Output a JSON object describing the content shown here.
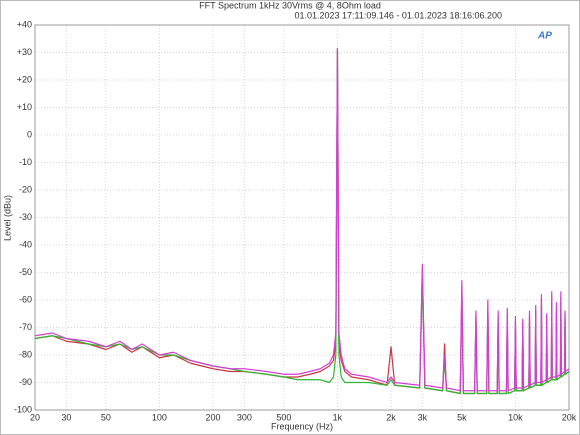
{
  "chart_data": {
    "type": "line",
    "title": "FFT Spectrum  1kHz 30Vrms @ 4, 8Ohm load",
    "subtitle": "01.01.2023 17:11:09.146 - 01.01.2023 18:16:06.200",
    "logo": "AP",
    "x_label": "Frequency (Hz)",
    "y_label": "Level (dBu)",
    "xscale": "log",
    "grid": true,
    "xlim": [
      20,
      20000
    ],
    "ylim": [
      -100,
      40
    ],
    "xticks": [
      20,
      30,
      50,
      100,
      200,
      300,
      500,
      {
        "value": 1000,
        "label": "1k"
      },
      {
        "value": 2000,
        "label": "2k"
      },
      {
        "value": 3000,
        "label": "3k"
      },
      {
        "value": 5000,
        "label": "5k"
      },
      {
        "value": 10000,
        "label": "10k"
      },
      {
        "value": 20000,
        "label": "20k"
      }
    ],
    "yticks": [
      {
        "value": 40,
        "label": "+40"
      },
      {
        "value": 30,
        "label": "+30"
      },
      {
        "value": 20,
        "label": "+20"
      },
      {
        "value": 10,
        "label": "+10"
      },
      0,
      -10,
      -20,
      -30,
      -40,
      -50,
      -60,
      -70,
      -80,
      -90,
      -100
    ],
    "x": [
      20,
      25,
      30,
      40,
      50,
      60,
      70,
      80,
      100,
      120,
      150,
      200,
      250,
      300,
      400,
      500,
      600,
      700,
      800,
      900,
      950,
      980,
      1000,
      1020,
      1050,
      1100,
      1200,
      1500,
      1900,
      2000,
      2100,
      2900,
      3000,
      3100,
      3900,
      4000,
      4100,
      4900,
      5000,
      5100,
      5900,
      6000,
      6100,
      6900,
      7000,
      7100,
      7900,
      8000,
      8100,
      8900,
      9000,
      9100,
      9900,
      10000,
      10100,
      10900,
      11000,
      11100,
      11900,
      12000,
      12100,
      12900,
      13000,
      13100,
      13900,
      14000,
      14100,
      14900,
      15000,
      15100,
      15900,
      16000,
      16100,
      16900,
      17000,
      17100,
      17900,
      18000,
      18100,
      18900,
      19000,
      19100,
      20000
    ],
    "series": [
      {
        "color": "#cc3344",
        "values": [
          -74,
          -73,
          -75,
          -76,
          -78,
          -76,
          -79,
          -77,
          -81,
          -80,
          -83,
          -85,
          -86,
          -86,
          -87,
          -88,
          -88,
          -87,
          -86,
          -84,
          -82,
          -76,
          31,
          -76,
          -82,
          -86,
          -88,
          -89,
          -91,
          -77,
          -91,
          -92,
          -49,
          -92,
          -93,
          -76,
          -93,
          -94,
          -55,
          -94,
          -94,
          -66,
          -94,
          -94,
          -62,
          -94,
          -94,
          -66,
          -94,
          -94,
          -65,
          -94,
          -93,
          -68,
          -93,
          -93,
          -68,
          -93,
          -92,
          -66,
          -92,
          -91,
          -64,
          -91,
          -91,
          -60,
          -91,
          -90,
          -66,
          -90,
          -89,
          -59,
          -89,
          -89,
          -63,
          -89,
          -88,
          -59,
          -88,
          -87,
          -65,
          -87,
          -86
        ]
      },
      {
        "color": "#2db82d",
        "values": [
          -74,
          -73,
          -74,
          -76,
          -77,
          -76,
          -78,
          -77,
          -80,
          -80,
          -82,
          -84,
          -85,
          -86,
          -87,
          -88,
          -89,
          -89,
          -89,
          -90,
          -88,
          -80,
          31,
          -80,
          -88,
          -90,
          -90,
          -90,
          -91,
          -89,
          -91,
          -92,
          -52,
          -92,
          -93,
          -82,
          -93,
          -94,
          -58,
          -94,
          -94,
          -68,
          -94,
          -94,
          -64,
          -94,
          -94,
          -68,
          -94,
          -94,
          -67,
          -94,
          -93,
          -70,
          -93,
          -93,
          -70,
          -93,
          -92,
          -68,
          -92,
          -91,
          -66,
          -91,
          -91,
          -62,
          -91,
          -90,
          -68,
          -90,
          -89,
          -61,
          -89,
          -89,
          -65,
          -89,
          -88,
          -61,
          -88,
          -87,
          -67,
          -87,
          -86
        ]
      },
      {
        "color": "#d63cd6",
        "values": [
          -73,
          -72,
          -74,
          -75,
          -77,
          -75,
          -78,
          -76,
          -80,
          -79,
          -82,
          -84,
          -85,
          -85,
          -86,
          -87,
          -87,
          -86,
          -85,
          -83,
          -80,
          -72,
          31.5,
          -72,
          -80,
          -85,
          -87,
          -88,
          -90,
          -88,
          -90,
          -91,
          -47,
          -91,
          -92,
          -80,
          -92,
          -93,
          -53,
          -93,
          -93,
          -64,
          -93,
          -93,
          -60,
          -93,
          -93,
          -64,
          -93,
          -93,
          -63,
          -93,
          -92,
          -66,
          -92,
          -92,
          -67,
          -92,
          -91,
          -64,
          -91,
          -90,
          -62,
          -90,
          -90,
          -58,
          -90,
          -89,
          -65,
          -89,
          -88,
          -57,
          -88,
          -88,
          -61,
          -88,
          -87,
          -57,
          -87,
          -86,
          -64,
          -86,
          -85
        ]
      }
    ]
  }
}
